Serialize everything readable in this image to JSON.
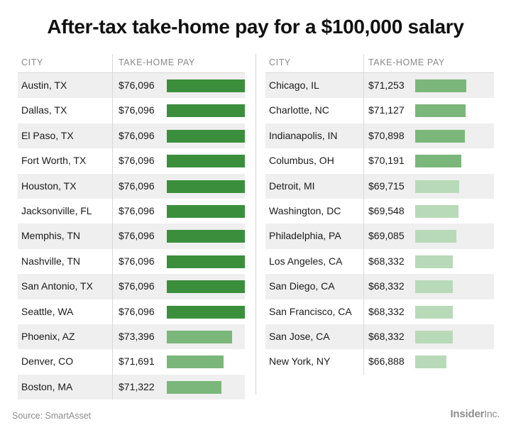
{
  "title": "After-tax take-home pay for a $100,000 salary",
  "headers": {
    "city": "CITY",
    "pay": "TAKE-HOME PAY"
  },
  "source": "Source: SmartAsset",
  "brand": {
    "name": "Insider",
    "suffix": "Inc."
  },
  "colors": {
    "high": "#3b8f3c",
    "mid": "#7bb77b",
    "low": "#b8dab8",
    "row_shade": "#efefef"
  },
  "chart_data": {
    "type": "bar",
    "title": "After-tax take-home pay for a $100,000 salary",
    "xlabel": "CITY",
    "ylabel": "TAKE-HOME PAY",
    "grid": false,
    "tables": [
      {
        "rows": [
          {
            "city": "Austin, TX",
            "label": "$76,096",
            "value": 76096,
            "tier": "high"
          },
          {
            "city": "Dallas, TX",
            "label": "$76,096",
            "value": 76096,
            "tier": "high"
          },
          {
            "city": "El Paso, TX",
            "label": "$76,096",
            "value": 76096,
            "tier": "high"
          },
          {
            "city": "Fort Worth, TX",
            "label": "$76,096",
            "value": 76096,
            "tier": "high"
          },
          {
            "city": "Houston, TX",
            "label": "$76,096",
            "value": 76096,
            "tier": "high"
          },
          {
            "city": "Jacksonville, FL",
            "label": "$76,096",
            "value": 76096,
            "tier": "high"
          },
          {
            "city": "Memphis, TN",
            "label": "$76,096",
            "value": 76096,
            "tier": "high"
          },
          {
            "city": "Nashville, TN",
            "label": "$76,096",
            "value": 76096,
            "tier": "high"
          },
          {
            "city": "San Antonio, TX",
            "label": "$76,096",
            "value": 76096,
            "tier": "high"
          },
          {
            "city": "Seattle, WA",
            "label": "$76,096",
            "value": 76096,
            "tier": "high"
          },
          {
            "city": "Phoenix, AZ",
            "label": "$73,396",
            "value": 73396,
            "tier": "mid"
          },
          {
            "city": "Denver, CO",
            "label": "$71,691",
            "value": 71691,
            "tier": "mid"
          },
          {
            "city": "Boston, MA",
            "label": "$71,322",
            "value": 71322,
            "tier": "mid"
          }
        ]
      },
      {
        "rows": [
          {
            "city": "Chicago, IL",
            "label": "$71,253",
            "value": 71253,
            "tier": "mid"
          },
          {
            "city": "Charlotte, NC",
            "label": "$71,127",
            "value": 71127,
            "tier": "mid"
          },
          {
            "city": "Indianapolis, IN",
            "label": "$70,898",
            "value": 70898,
            "tier": "mid"
          },
          {
            "city": "Columbus, OH",
            "label": "$70,191",
            "value": 70191,
            "tier": "mid"
          },
          {
            "city": "Detroit, MI",
            "label": "$69,715",
            "value": 69715,
            "tier": "low"
          },
          {
            "city": "Washington, DC",
            "label": "$69,548",
            "value": 69548,
            "tier": "low"
          },
          {
            "city": "Philadelphia, PA",
            "label": "$69,085",
            "value": 69085,
            "tier": "low"
          },
          {
            "city": "Los Angeles, CA",
            "label": "$68,332",
            "value": 68332,
            "tier": "low"
          },
          {
            "city": "San Diego, CA",
            "label": "$68,332",
            "value": 68332,
            "tier": "low"
          },
          {
            "city": "San Francisco, CA",
            "label": "$68,332",
            "value": 68332,
            "tier": "low"
          },
          {
            "city": "San Jose, CA",
            "label": "$68,332",
            "value": 68332,
            "tier": "low"
          },
          {
            "city": "New York, NY",
            "label": "$66,888",
            "value": 66888,
            "tier": "low"
          }
        ]
      }
    ]
  }
}
